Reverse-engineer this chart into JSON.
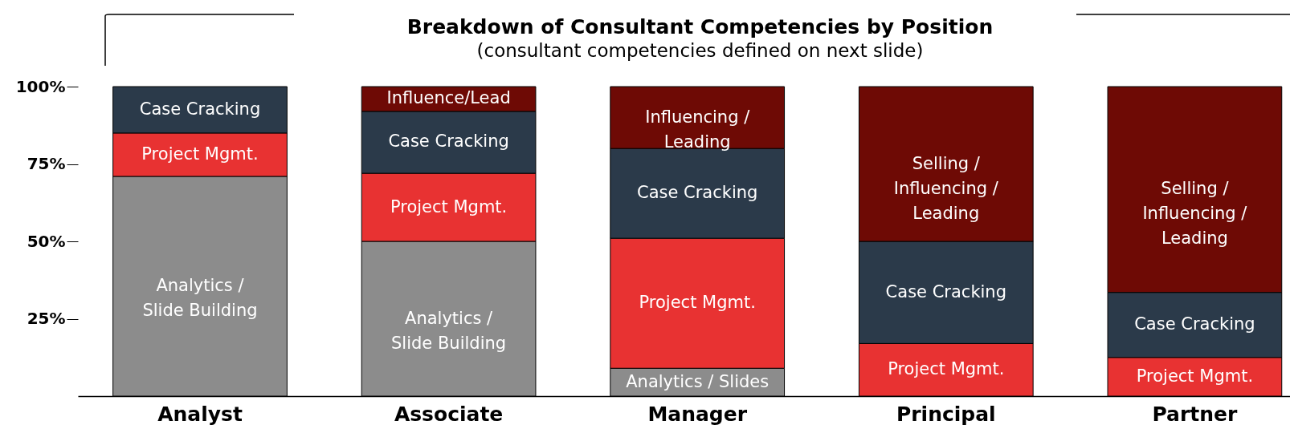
{
  "chart_data": {
    "type": "bar",
    "stacked": true,
    "title": "Breakdown of Consultant Competencies by Position",
    "subtitle": "(consultant competencies defined on next slide)",
    "categories": [
      "Analyst",
      "Associate",
      "Manager",
      "Principal",
      "Partner"
    ],
    "ylim": [
      0,
      100
    ],
    "yticks": [
      {
        "value": 25,
        "label": "25%"
      },
      {
        "value": 50,
        "label": "50%"
      },
      {
        "value": 75,
        "label": "75%"
      },
      {
        "value": 100,
        "label": "100%"
      }
    ],
    "grid": false,
    "series": [
      {
        "color": "#8c8c8c",
        "values": [
          71,
          50,
          9,
          null,
          null
        ],
        "value_labels": [
          "Analytics /\nSlide Building",
          "Analytics /\nSlide Building",
          "Analytics / Slides",
          null,
          null
        ]
      },
      {
        "color": "#e83232",
        "values": [
          14,
          22,
          42,
          17,
          12.5
        ],
        "value_labels": [
          "Project Mgmt.",
          "Project Mgmt.",
          "Project Mgmt.",
          "Project Mgmt.",
          "Project Mgmt."
        ]
      },
      {
        "color": "#2b3a4a",
        "values": [
          15,
          20,
          29,
          33,
          21
        ],
        "value_labels": [
          "Case Cracking",
          "Case Cracking",
          "Case Cracking",
          "Case Cracking",
          "Case Cracking"
        ]
      },
      {
        "color": "#6e0a05",
        "values": [
          null,
          8,
          20,
          50,
          66.5
        ],
        "value_labels": [
          null,
          "Influence/Lead",
          "Influencing /\nLeading",
          "Selling /\nInfluencing /\nLeading",
          "Selling /\nInfluencing /\nLeading"
        ]
      }
    ]
  }
}
